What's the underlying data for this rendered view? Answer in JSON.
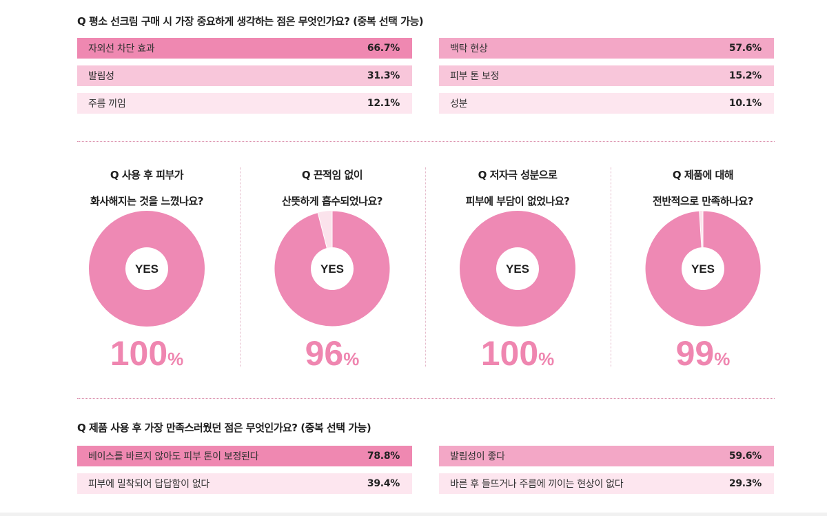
{
  "chart_data": [
    {
      "type": "bar",
      "title": "Q 평소 선크림 구매 시 가장 중요하게 생각하는 점은 무엇인가요? (중복 선택 가능)",
      "unit": "%",
      "categories": [
        "자외선 차단 효과",
        "백탁 현상",
        "발림성",
        "피부 톤 보정",
        "주름 끼임",
        "성분"
      ],
      "values": [
        66.7,
        57.6,
        31.3,
        15.2,
        12.1,
        10.1
      ],
      "items": [
        {
          "label": "자외선 차단 효과",
          "value": "66.7%",
          "level": 1
        },
        {
          "label": "백탁 현상",
          "value": "57.6%",
          "level": 2
        },
        {
          "label": "발림성",
          "value": "31.3%",
          "level": 3
        },
        {
          "label": "피부 톤 보정",
          "value": "15.2%",
          "level": 3
        },
        {
          "label": "주름 끼임",
          "value": "12.1%",
          "level": 4
        },
        {
          "label": "성분",
          "value": "10.1%",
          "level": 4
        }
      ]
    },
    {
      "type": "pie",
      "pies": [
        {
          "question_line1": "Q 사용 후 피부가",
          "question_line2": "화사해지는 것을 느꼈나요?",
          "center": "YES",
          "value": 100,
          "num": "100",
          "sym": "%"
        },
        {
          "question_line1": "Q 끈적임 없이",
          "question_line2": "산뜻하게 흡수되었나요?",
          "center": "YES",
          "value": 96,
          "num": "96",
          "sym": "%"
        },
        {
          "question_line1": "Q 저자극 성분으로",
          "question_line2": "피부에 부담이 없었나요?",
          "center": "YES",
          "value": 100,
          "num": "100",
          "sym": "%"
        },
        {
          "question_line1": "Q 제품에 대해",
          "question_line2": "전반적으로 만족하나요?",
          "center": "YES",
          "value": 99,
          "num": "99",
          "sym": "%"
        }
      ]
    },
    {
      "type": "bar",
      "title": "Q 제품 사용 후 가장 만족스러웠던 점은 무엇인가요? (중복 선택 가능)",
      "unit": "%",
      "categories": [
        "베이스를 바르지 않아도 피부 톤이 보정된다",
        "발림성이 좋다",
        "피부에 밀착되어 답답함이 없다",
        "바른 후 들뜨거나 주름에 끼이는 현상이 없다"
      ],
      "values": [
        78.8,
        59.6,
        39.4,
        29.3
      ],
      "items": [
        {
          "label": "베이스를 바르지 않아도 피부 톤이 보정된다",
          "value": "78.8%",
          "level": 1
        },
        {
          "label": "발림성이 좋다",
          "value": "59.6%",
          "level": 2
        },
        {
          "label": "피부에 밀착되어 답답함이 없다",
          "value": "39.4%",
          "level": 4
        },
        {
          "label": "바른 후 들뜨거나 주름에 끼이는 현상이 없다",
          "value": "29.3%",
          "level": 4
        }
      ]
    }
  ],
  "colors": {
    "level1": "#ef88b1",
    "level2": "#f3a7c6",
    "level3": "#f8c6da",
    "level4": "#fde6ef",
    "pie_fill": "#ee89b4",
    "pie_rest": "#fbe3ec",
    "accent_text": "#ef86b0"
  }
}
